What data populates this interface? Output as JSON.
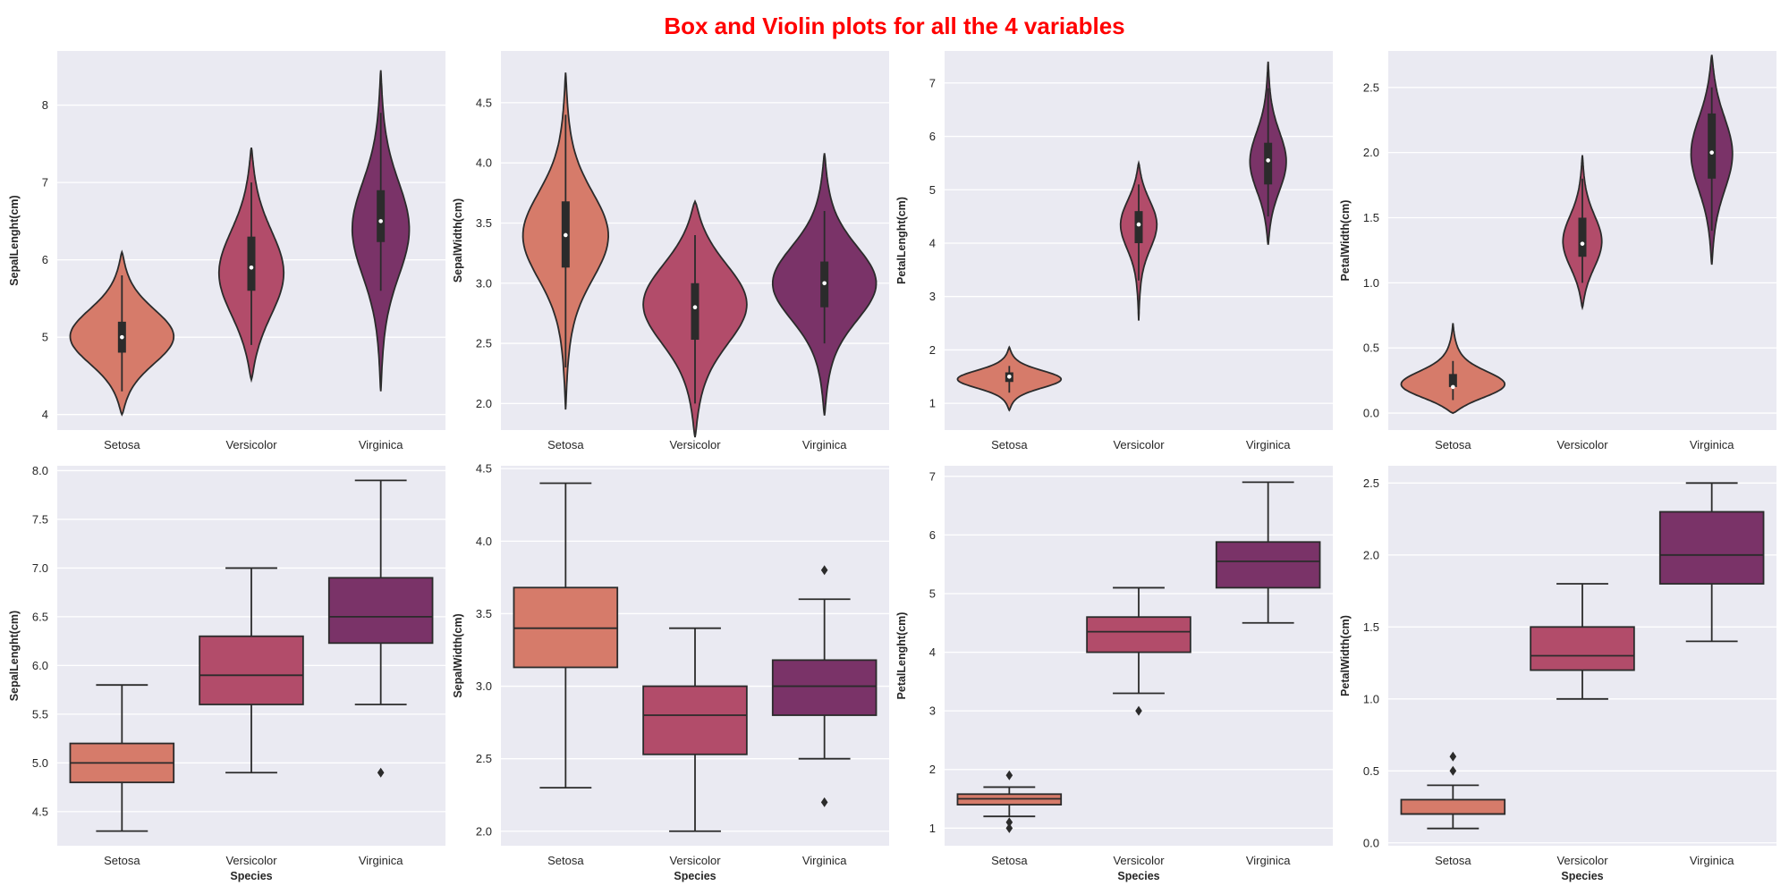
{
  "title": "Box and Violin plots for all the 4 variables",
  "colors": {
    "setosa": "#d67b6a",
    "versicolor": "#b24c6a",
    "virginica": "#7a3368",
    "panel_bg": "#eaeaf2",
    "grid": "#ffffff",
    "line": "#2b2b2b"
  },
  "categories": [
    "Setosa",
    "Versicolor",
    "Virginica"
  ],
  "xlabel": "Species",
  "chart_data": [
    {
      "type": "violin",
      "ylabel": "SepalLenght(cm)",
      "ylim": [
        3.8,
        8.7
      ],
      "yticks": [
        4,
        5,
        6,
        7,
        8
      ],
      "tick_labels": [
        "4",
        "5",
        "6",
        "7",
        "8"
      ],
      "groups": [
        {
          "name": "Setosa",
          "min": 4.3,
          "q1": 4.8,
          "median": 5.0,
          "q3": 5.2,
          "max": 5.8,
          "kde_low": 4.0,
          "kde_high": 6.1,
          "max_width": 0.4,
          "peak": 5.0,
          "peak_spread": 0.35
        },
        {
          "name": "Versicolor",
          "min": 4.9,
          "q1": 5.6,
          "median": 5.9,
          "q3": 6.3,
          "max": 7.0,
          "kde_low": 4.45,
          "kde_high": 7.45,
          "max_width": 0.25,
          "peak": 5.8,
          "peak_spread": 0.55
        },
        {
          "name": "Virginica",
          "min": 5.6,
          "q1": 6.23,
          "median": 6.5,
          "q3": 6.9,
          "max": 7.9,
          "kde_low": 4.3,
          "kde_high": 8.45,
          "max_width": 0.22,
          "peak": 6.4,
          "peak_spread": 0.6
        }
      ]
    },
    {
      "type": "violin",
      "ylabel": "SepalWidth(cm)",
      "ylim": [
        1.78,
        4.93
      ],
      "yticks": [
        2.0,
        2.5,
        3.0,
        3.5,
        4.0,
        4.5
      ],
      "tick_labels": [
        "2.0",
        "2.5",
        "3.0",
        "3.5",
        "4.0",
        "4.5"
      ],
      "groups": [
        {
          "name": "Setosa",
          "min": 2.3,
          "q1": 3.13,
          "median": 3.4,
          "q3": 3.68,
          "max": 4.4,
          "kde_low": 1.95,
          "kde_high": 4.75,
          "max_width": 0.33,
          "peak": 3.4,
          "peak_spread": 0.35
        },
        {
          "name": "Versicolor",
          "min": 2.0,
          "q1": 2.53,
          "median": 2.8,
          "q3": 3.0,
          "max": 3.4,
          "kde_low": 1.72,
          "kde_high": 3.68,
          "max_width": 0.4,
          "peak": 2.85,
          "peak_spread": 0.33
        },
        {
          "name": "Virginica",
          "min": 2.5,
          "q1": 2.8,
          "median": 3.0,
          "q3": 3.18,
          "max": 3.6,
          "kde_low": 1.9,
          "kde_high": 4.08,
          "max_width": 0.4,
          "peak": 3.0,
          "peak_spread": 0.3
        }
      ]
    },
    {
      "type": "violin",
      "ylabel": "PetalLenght(cm)",
      "ylim": [
        0.5,
        7.6
      ],
      "yticks": [
        1,
        2,
        3,
        4,
        5,
        6,
        7
      ],
      "tick_labels": [
        "1",
        "2",
        "3",
        "4",
        "5",
        "6",
        "7"
      ],
      "groups": [
        {
          "name": "Setosa",
          "min": 1.2,
          "q1": 1.4,
          "median": 1.5,
          "q3": 1.58,
          "max": 1.7,
          "kde_low": 0.87,
          "kde_high": 2.05,
          "max_width": 0.4,
          "peak": 1.45,
          "peak_spread": 0.16
        },
        {
          "name": "Versicolor",
          "min": 3.3,
          "q1": 4.0,
          "median": 4.35,
          "q3": 4.6,
          "max": 5.1,
          "kde_low": 2.55,
          "kde_high": 5.5,
          "max_width": 0.14,
          "peak": 4.4,
          "peak_spread": 0.45
        },
        {
          "name": "Virginica",
          "min": 4.5,
          "q1": 5.1,
          "median": 5.55,
          "q3": 5.88,
          "max": 6.9,
          "kde_low": 3.97,
          "kde_high": 7.4,
          "max_width": 0.14,
          "peak": 5.5,
          "peak_spread": 0.55
        }
      ]
    },
    {
      "type": "violin",
      "ylabel": "PetalWidth(cm)",
      "ylim": [
        -0.13,
        2.78
      ],
      "yticks": [
        0.0,
        0.5,
        1.0,
        1.5,
        2.0,
        2.5
      ],
      "tick_labels": [
        "0.0",
        "0.5",
        "1.0",
        "1.5",
        "2.0",
        "2.5"
      ],
      "groups": [
        {
          "name": "Setosa",
          "min": 0.1,
          "q1": 0.2,
          "median": 0.2,
          "q3": 0.3,
          "max": 0.4,
          "kde_low": 0.0,
          "kde_high": 0.69,
          "max_width": 0.4,
          "peak": 0.2,
          "peak_spread": 0.1
        },
        {
          "name": "Versicolor",
          "min": 1.0,
          "q1": 1.2,
          "median": 1.3,
          "q3": 1.5,
          "max": 1.8,
          "kde_low": 0.81,
          "kde_high": 1.98,
          "max_width": 0.15,
          "peak": 1.3,
          "peak_spread": 0.2
        },
        {
          "name": "Virginica",
          "min": 1.4,
          "q1": 1.8,
          "median": 2.0,
          "q3": 2.3,
          "max": 2.5,
          "kde_low": 1.14,
          "kde_high": 2.75,
          "max_width": 0.16,
          "peak": 2.0,
          "peak_spread": 0.28
        }
      ]
    },
    {
      "type": "box",
      "ylabel": "SepalLenght(cm)",
      "ylim": [
        4.15,
        8.05
      ],
      "yticks": [
        4.5,
        5.0,
        5.5,
        6.0,
        6.5,
        7.0,
        7.5,
        8.0
      ],
      "tick_labels": [
        "4.5",
        "5.0",
        "5.5",
        "6.0",
        "6.5",
        "7.0",
        "7.5",
        "8.0"
      ],
      "groups": [
        {
          "name": "Setosa",
          "min": 4.3,
          "q1": 4.8,
          "median": 5.0,
          "q3": 5.2,
          "max": 5.8,
          "outliers": []
        },
        {
          "name": "Versicolor",
          "min": 4.9,
          "q1": 5.6,
          "median": 5.9,
          "q3": 6.3,
          "max": 7.0,
          "outliers": []
        },
        {
          "name": "Virginica",
          "min": 5.6,
          "q1": 6.23,
          "median": 6.5,
          "q3": 6.9,
          "max": 7.9,
          "outliers": [
            4.9
          ]
        }
      ]
    },
    {
      "type": "box",
      "ylabel": "SepalWidth(cm)",
      "ylim": [
        1.9,
        4.52
      ],
      "yticks": [
        2.0,
        2.5,
        3.0,
        3.5,
        4.0,
        4.5
      ],
      "tick_labels": [
        "2.0",
        "2.5",
        "3.0",
        "3.5",
        "4.0",
        "4.5"
      ],
      "groups": [
        {
          "name": "Setosa",
          "min": 2.3,
          "q1": 3.13,
          "median": 3.4,
          "q3": 3.68,
          "max": 4.4,
          "outliers": []
        },
        {
          "name": "Versicolor",
          "min": 2.0,
          "q1": 2.53,
          "median": 2.8,
          "q3": 3.0,
          "max": 3.4,
          "outliers": []
        },
        {
          "name": "Virginica",
          "min": 2.5,
          "q1": 2.8,
          "median": 3.0,
          "q3": 3.18,
          "max": 3.6,
          "outliers": [
            3.8,
            2.2
          ]
        }
      ]
    },
    {
      "type": "box",
      "ylabel": "PetalLenght(cm)",
      "ylim": [
        0.7,
        7.18
      ],
      "yticks": [
        1,
        2,
        3,
        4,
        5,
        6,
        7
      ],
      "tick_labels": [
        "1",
        "2",
        "3",
        "4",
        "5",
        "6",
        "7"
      ],
      "groups": [
        {
          "name": "Setosa",
          "min": 1.2,
          "q1": 1.4,
          "median": 1.5,
          "q3": 1.58,
          "max": 1.7,
          "outliers": [
            1.9,
            1.1,
            1.0
          ]
        },
        {
          "name": "Versicolor",
          "min": 3.3,
          "q1": 4.0,
          "median": 4.35,
          "q3": 4.6,
          "max": 5.1,
          "outliers": [
            3.0
          ]
        },
        {
          "name": "Virginica",
          "min": 4.5,
          "q1": 5.1,
          "median": 5.55,
          "q3": 5.88,
          "max": 6.9,
          "outliers": []
        }
      ]
    },
    {
      "type": "box",
      "ylabel": "PetalWidth(cm)",
      "ylim": [
        -0.02,
        2.62
      ],
      "yticks": [
        0.0,
        0.5,
        1.0,
        1.5,
        2.0,
        2.5
      ],
      "tick_labels": [
        "0.0",
        "0.5",
        "1.0",
        "1.5",
        "2.0",
        "2.5"
      ],
      "groups": [
        {
          "name": "Setosa",
          "min": 0.1,
          "q1": 0.2,
          "median": 0.2,
          "q3": 0.3,
          "max": 0.4,
          "outliers": [
            0.5,
            0.6
          ]
        },
        {
          "name": "Versicolor",
          "min": 1.0,
          "q1": 1.2,
          "median": 1.3,
          "q3": 1.5,
          "max": 1.8,
          "outliers": []
        },
        {
          "name": "Virginica",
          "min": 1.4,
          "q1": 1.8,
          "median": 2.0,
          "q3": 2.3,
          "max": 2.5,
          "outliers": []
        }
      ]
    }
  ]
}
